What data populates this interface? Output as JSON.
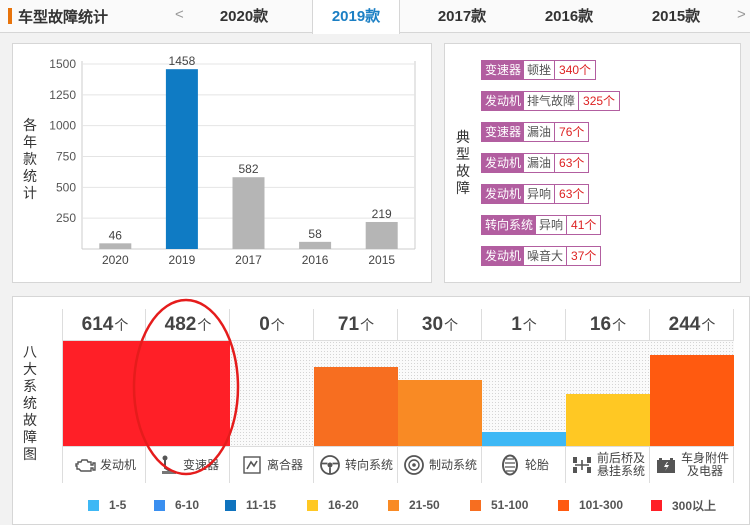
{
  "header": {
    "title": "车型故障统计",
    "prev_arrow": "<",
    "next_arrow": ">",
    "tabs": [
      {
        "label": "2020款",
        "active": false
      },
      {
        "label": "2019款",
        "active": true
      },
      {
        "label": "2017款",
        "active": false
      },
      {
        "label": "2016款",
        "active": false
      },
      {
        "label": "2015款",
        "active": false
      }
    ]
  },
  "yearly_chart": {
    "ylabel": "各年款统计"
  },
  "chart_data": {
    "type": "bar",
    "categories": [
      "2020",
      "2019",
      "2017",
      "2016",
      "2015"
    ],
    "values": [
      46,
      1458,
      582,
      58,
      219
    ],
    "highlight_index": 1,
    "bar_color": "#b5b5b5",
    "highlight_color": "#0f7bc4",
    "y_ticks": [
      250,
      500,
      750,
      1000,
      1250,
      1500
    ],
    "ylim": [
      0,
      1500
    ],
    "grid": true
  },
  "typical_faults": {
    "label": "典型故障",
    "items": [
      {
        "system": "变速器",
        "fault": "顿挫",
        "count": "340个"
      },
      {
        "system": "发动机",
        "fault": "排气故障",
        "count": "325个"
      },
      {
        "system": "变速器",
        "fault": "漏油",
        "count": "76个"
      },
      {
        "system": "发动机",
        "fault": "漏油",
        "count": "63个"
      },
      {
        "system": "发动机",
        "fault": "异响",
        "count": "63个"
      },
      {
        "system": "转向系统",
        "fault": "异响",
        "count": "41个"
      },
      {
        "system": "发动机",
        "fault": "噪音大",
        "count": "37个"
      }
    ]
  },
  "eight_systems": {
    "label": "八大系统故障图",
    "unit": "个",
    "items": [
      {
        "name": "发动机",
        "count": 614,
        "icon": "engine-icon",
        "color": "#ff1f27",
        "fill": 1.0
      },
      {
        "name": "变速器",
        "count": 482,
        "icon": "gearshift-icon",
        "color": "#ff1f27",
        "fill": 1.0
      },
      {
        "name": "离合器",
        "count": 0,
        "icon": "clutch-icon",
        "color": "#ffffff",
        "fill": 0.0
      },
      {
        "name": "转向系统",
        "count": 71,
        "icon": "steering-wheel-icon",
        "color": "#f76e20",
        "fill": 0.75
      },
      {
        "name": "制动系统",
        "count": 30,
        "icon": "brake-disc-icon",
        "color": "#f98a24",
        "fill": 0.63
      },
      {
        "name": "轮胎",
        "count": 1,
        "icon": "tire-icon",
        "color": "#3eb8f5",
        "fill": 0.13
      },
      {
        "name": "前后桥及悬挂系统",
        "name_lines": [
          "前后桥及",
          "悬挂系统"
        ],
        "count": 16,
        "icon": "suspension-icon",
        "color": "#ffc823",
        "fill": 0.5
      },
      {
        "name": "车身附件及电器",
        "name_lines": [
          "车身附件",
          "及电器"
        ],
        "count": 244,
        "icon": "battery-icon",
        "color": "#ff5a10",
        "fill": 0.87
      }
    ]
  },
  "legend": [
    {
      "label": "1-5",
      "color": "#3eb8f5"
    },
    {
      "label": "6-10",
      "color": "#3a8ff0"
    },
    {
      "label": "11-15",
      "color": "#0f73be"
    },
    {
      "label": "16-20",
      "color": "#ffc823"
    },
    {
      "label": "21-50",
      "color": "#f98a24"
    },
    {
      "label": "51-100",
      "color": "#f76e20"
    },
    {
      "label": "101-300",
      "color": "#ff5a10"
    },
    {
      "label": "300以上",
      "color": "#ff1f27"
    }
  ],
  "annotation": {
    "color": "#e51c1c"
  }
}
